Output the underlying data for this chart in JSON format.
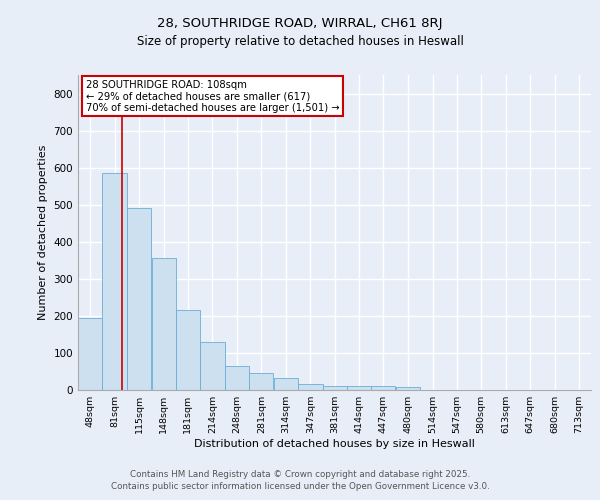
{
  "title1": "28, SOUTHRIDGE ROAD, WIRRAL, CH61 8RJ",
  "title2": "Size of property relative to detached houses in Heswall",
  "xlabel": "Distribution of detached houses by size in Heswall",
  "ylabel": "Number of detached properties",
  "bin_labels": [
    "48sqm",
    "81sqm",
    "115sqm",
    "148sqm",
    "181sqm",
    "214sqm",
    "248sqm",
    "281sqm",
    "314sqm",
    "347sqm",
    "381sqm",
    "414sqm",
    "447sqm",
    "480sqm",
    "514sqm",
    "547sqm",
    "580sqm",
    "613sqm",
    "647sqm",
    "680sqm",
    "713sqm"
  ],
  "bin_edges": [
    48,
    81,
    115,
    148,
    181,
    214,
    248,
    281,
    314,
    347,
    381,
    414,
    447,
    480,
    514,
    547,
    580,
    613,
    647,
    680,
    713,
    746
  ],
  "bar_heights": [
    195,
    585,
    490,
    355,
    215,
    130,
    65,
    45,
    33,
    15,
    10,
    12,
    10,
    7,
    0,
    0,
    0,
    0,
    0,
    0,
    0
  ],
  "bar_color": "#cce0f0",
  "bar_edgecolor": "#6aaed6",
  "property_size": 108,
  "red_line_color": "#cc0000",
  "annotation_line1": "28 SOUTHRIDGE ROAD: 108sqm",
  "annotation_line2": "← 29% of detached houses are smaller (617)",
  "annotation_line3": "70% of semi-detached houses are larger (1,501) →",
  "ylim": [
    0,
    850
  ],
  "yticks": [
    0,
    100,
    200,
    300,
    400,
    500,
    600,
    700,
    800
  ],
  "bg_color": "#e8eef8",
  "grid_color": "#ffffff",
  "footer1": "Contains HM Land Registry data © Crown copyright and database right 2025.",
  "footer2": "Contains public sector information licensed under the Open Government Licence v3.0."
}
